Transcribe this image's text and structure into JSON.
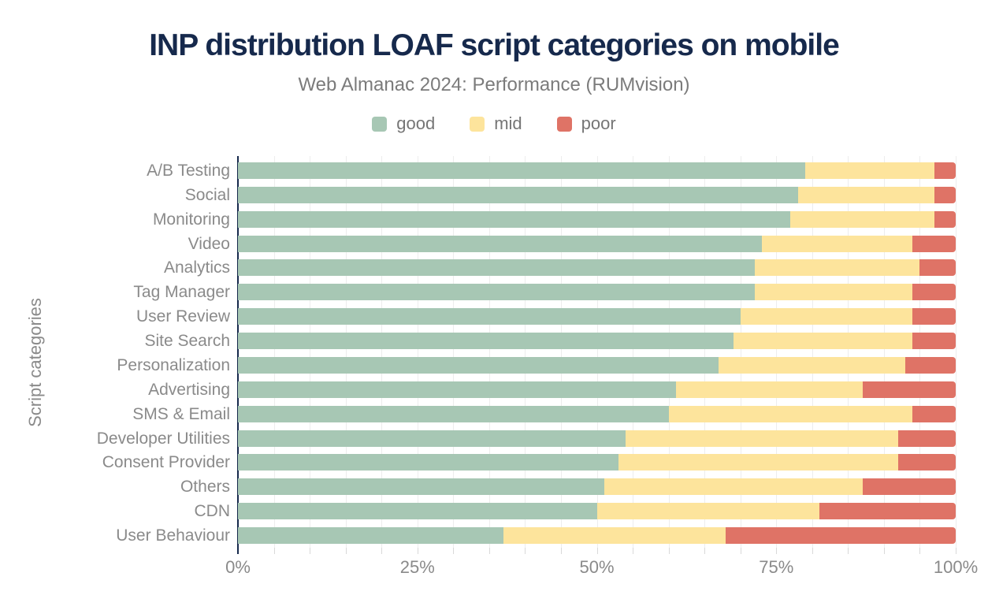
{
  "title": "INP distribution LOAF script categories on mobile",
  "subtitle": "Web Almanac 2024: Performance (RUMvision)",
  "chart_data": {
    "type": "bar",
    "orientation": "horizontal",
    "stacked": true,
    "unit": "%",
    "title": "INP distribution LOAF script categories on mobile",
    "subtitle": "Web Almanac 2024: Performance (RUMvision)",
    "xlabel": "",
    "ylabel": "Script categories",
    "xlim": [
      0,
      100
    ],
    "x_ticks": [
      {
        "label": "0%",
        "value": 0
      },
      {
        "label": "25%",
        "value": 25
      },
      {
        "label": "50%",
        "value": 50
      },
      {
        "label": "75%",
        "value": 75
      },
      {
        "label": "100%",
        "value": 100
      }
    ],
    "grid": "vertical gridlines every 5%",
    "legend_position": "top-center",
    "categories": [
      "A/B Testing",
      "Social",
      "Monitoring",
      "Video",
      "Analytics",
      "Tag Manager",
      "User Review",
      "Site Search",
      "Personalization",
      "Advertising",
      "SMS & Email",
      "Developer Utilities",
      "Consent Provider",
      "Others",
      "CDN",
      "User Behaviour"
    ],
    "series": [
      {
        "name": "good",
        "color": "#a7c7b4",
        "values": [
          79,
          78,
          77,
          73,
          72,
          72,
          70,
          69,
          67,
          61,
          60,
          54,
          53,
          51,
          50,
          37
        ]
      },
      {
        "name": "mid",
        "color": "#fde49c",
        "values": [
          18,
          19,
          20,
          21,
          23,
          22,
          24,
          25,
          26,
          26,
          34,
          38,
          39,
          36,
          31,
          31
        ]
      },
      {
        "name": "poor",
        "color": "#df7366",
        "values": [
          3,
          3,
          3,
          6,
          5,
          6,
          6,
          6,
          7,
          13,
          6,
          8,
          8,
          13,
          19,
          32
        ]
      }
    ]
  },
  "colors": {
    "background": "#ffffff",
    "title_text": "#16294c",
    "axis_line": "#16294c",
    "muted_text": "#757575",
    "axis_text": "#8a8a8a",
    "gridline": "#ededed",
    "tick_mark": "#d9d9d9"
  }
}
